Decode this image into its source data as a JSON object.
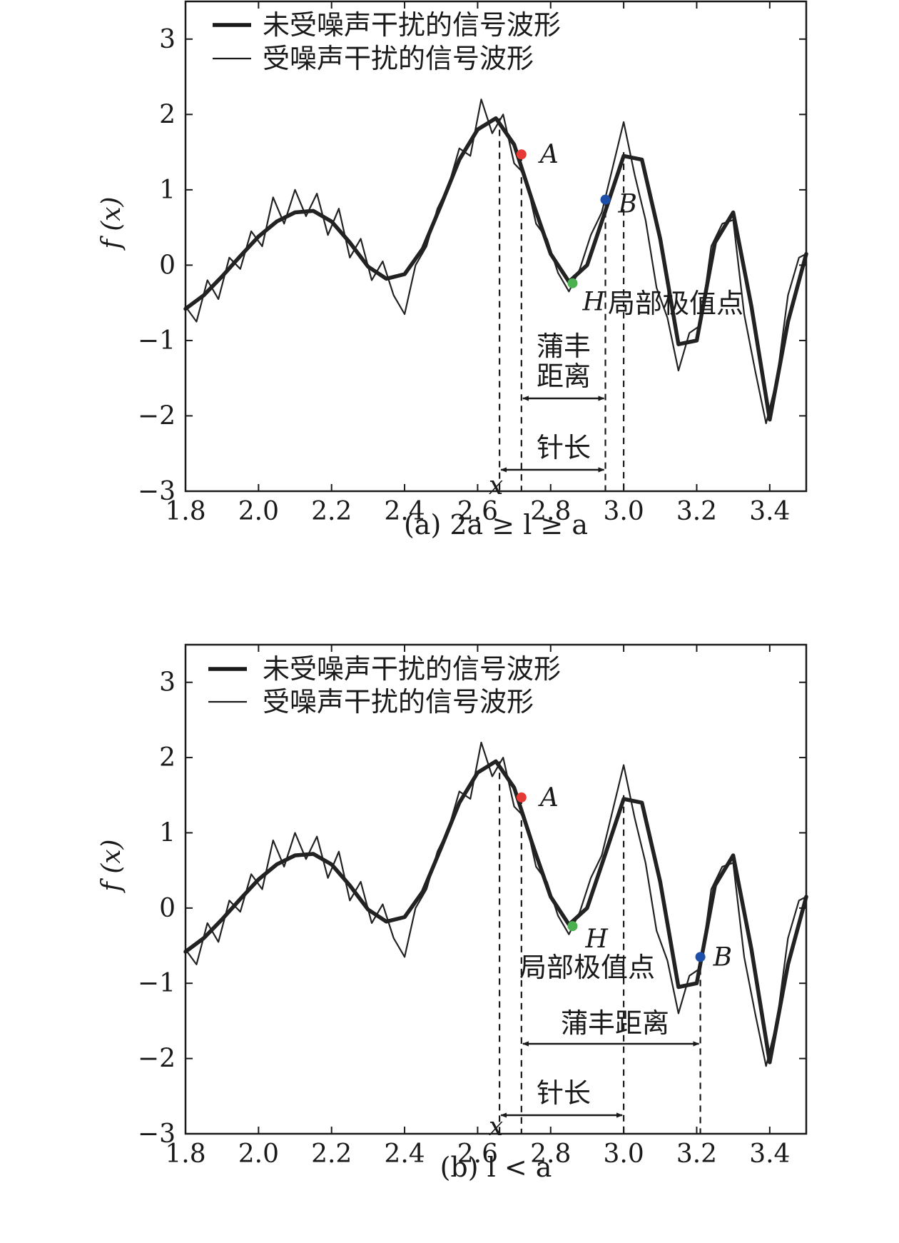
{
  "chart_data": [
    {
      "type": "line",
      "caption": "(a) 2a ≥ l ≥ a",
      "xlabel": "x",
      "ylabel": "f (x)",
      "xlim": [
        1.8,
        3.5
      ],
      "ylim": [
        -3,
        3.5
      ],
      "xticks": [
        "1.8",
        "2.0",
        "2.2",
        "2.4",
        "2.6",
        "2.8",
        "3.0",
        "3.2",
        "3.4"
      ],
      "xtick_values": [
        1.8,
        2.0,
        2.2,
        2.4,
        2.6,
        2.8,
        3.0,
        3.2,
        3.4
      ],
      "yticks": [
        "−3",
        "−2",
        "−1",
        "0",
        "1",
        "2",
        "3"
      ],
      "ytick_values": [
        -3,
        -2,
        -1,
        0,
        1,
        2,
        3
      ],
      "legend": {
        "position": "top-left",
        "entries": [
          "未受噪声干扰的信号波形",
          "受噪声干扰的信号波形"
        ]
      },
      "series": [
        {
          "name": "未受噪声干扰的信号波形",
          "style": "thick",
          "color": "#222222",
          "x": [
            1.8,
            1.85,
            1.9,
            1.95,
            2.0,
            2.05,
            2.1,
            2.15,
            2.2,
            2.25,
            2.3,
            2.35,
            2.4,
            2.45,
            2.5,
            2.55,
            2.6,
            2.65,
            2.7,
            2.75,
            2.8,
            2.85,
            2.9,
            2.95,
            3.0,
            3.05,
            3.1,
            3.15,
            3.2,
            3.25,
            3.3,
            3.35,
            3.4,
            3.45,
            3.5
          ],
          "y": [
            -0.58,
            -0.4,
            -0.15,
            0.12,
            0.38,
            0.58,
            0.7,
            0.72,
            0.58,
            0.3,
            -0.02,
            -0.18,
            -0.12,
            0.22,
            0.8,
            1.4,
            1.8,
            1.95,
            1.6,
            0.85,
            0.15,
            -0.22,
            0.0,
            0.72,
            1.45,
            1.4,
            0.35,
            -1.05,
            -1.0,
            0.3,
            0.7,
            -0.55,
            -2.05,
            -0.75,
            0.15
          ]
        },
        {
          "name": "受噪声干扰的信号波形",
          "style": "thin",
          "color": "#222222",
          "x": [
            1.8,
            1.83,
            1.86,
            1.89,
            1.92,
            1.95,
            1.98,
            2.01,
            2.04,
            2.07,
            2.1,
            2.13,
            2.16,
            2.19,
            2.22,
            2.25,
            2.28,
            2.31,
            2.34,
            2.37,
            2.4,
            2.43,
            2.46,
            2.49,
            2.52,
            2.55,
            2.58,
            2.61,
            2.64,
            2.67,
            2.7,
            2.73,
            2.76,
            2.79,
            2.82,
            2.85,
            2.88,
            2.91,
            2.94,
            2.97,
            3.0,
            3.03,
            3.06,
            3.09,
            3.12,
            3.15,
            3.18,
            3.21,
            3.24,
            3.27,
            3.3,
            3.33,
            3.36,
            3.39,
            3.42,
            3.45,
            3.48,
            3.5
          ],
          "y": [
            -0.55,
            -0.75,
            -0.2,
            -0.45,
            0.1,
            -0.05,
            0.45,
            0.25,
            0.9,
            0.55,
            1.0,
            0.65,
            0.95,
            0.4,
            0.75,
            0.1,
            0.35,
            -0.2,
            0.05,
            -0.4,
            -0.65,
            0.0,
            0.25,
            0.75,
            1.05,
            1.55,
            1.45,
            2.2,
            1.75,
            2.0,
            1.35,
            1.2,
            0.55,
            0.35,
            -0.1,
            -0.35,
            -0.05,
            0.4,
            0.7,
            1.3,
            1.9,
            1.2,
            0.6,
            -0.3,
            -0.7,
            -1.4,
            -0.9,
            -0.8,
            0.25,
            0.55,
            0.6,
            -0.65,
            -1.4,
            -2.1,
            -1.5,
            -0.4,
            0.1,
            0.15
          ]
        }
      ],
      "points": [
        {
          "label": "A",
          "x": 2.72,
          "y": 1.47,
          "color": "#e53935"
        },
        {
          "label": "B",
          "x": 2.95,
          "y": 0.87,
          "color": "#1e4fa8"
        },
        {
          "label": "H",
          "x": 2.86,
          "y": -0.24,
          "color": "#4caf50"
        }
      ],
      "annotations": {
        "local_extreme": "局部极值点",
        "buffon_distance": [
          "蒲丰",
          "距离"
        ],
        "needle_length": "针长"
      },
      "vlines": [
        2.66,
        2.72,
        2.95,
        3.0
      ]
    },
    {
      "type": "line",
      "caption": "(b) l < a",
      "xlabel": "x",
      "ylabel": "f (x)",
      "xlim": [
        1.8,
        3.5
      ],
      "ylim": [
        -3,
        3.5
      ],
      "xticks": [
        "1.8",
        "2.0",
        "2.2",
        "2.4",
        "2.6",
        "2.8",
        "3.0",
        "3.2",
        "3.4"
      ],
      "xtick_values": [
        1.8,
        2.0,
        2.2,
        2.4,
        2.6,
        2.8,
        3.0,
        3.2,
        3.4
      ],
      "yticks": [
        "−3",
        "−2",
        "−1",
        "0",
        "1",
        "2",
        "3"
      ],
      "ytick_values": [
        -3,
        -2,
        -1,
        0,
        1,
        2,
        3
      ],
      "legend": {
        "position": "top-left",
        "entries": [
          "未受噪声干扰的信号波形",
          "受噪声干扰的信号波形"
        ]
      },
      "series": [
        {
          "name": "未受噪声干扰的信号波形",
          "style": "thick",
          "color": "#222222",
          "x": [
            1.8,
            1.85,
            1.9,
            1.95,
            2.0,
            2.05,
            2.1,
            2.15,
            2.2,
            2.25,
            2.3,
            2.35,
            2.4,
            2.45,
            2.5,
            2.55,
            2.6,
            2.65,
            2.7,
            2.75,
            2.8,
            2.85,
            2.9,
            2.95,
            3.0,
            3.05,
            3.1,
            3.15,
            3.2,
            3.25,
            3.3,
            3.35,
            3.4,
            3.45,
            3.5
          ],
          "y": [
            -0.58,
            -0.4,
            -0.15,
            0.12,
            0.38,
            0.58,
            0.7,
            0.72,
            0.58,
            0.3,
            -0.02,
            -0.18,
            -0.12,
            0.22,
            0.8,
            1.4,
            1.8,
            1.95,
            1.6,
            0.85,
            0.15,
            -0.22,
            0.0,
            0.72,
            1.45,
            1.4,
            0.35,
            -1.05,
            -1.0,
            0.3,
            0.7,
            -0.55,
            -2.05,
            -0.75,
            0.15
          ]
        },
        {
          "name": "受噪声干扰的信号波形",
          "style": "thin",
          "color": "#222222",
          "x": [
            1.8,
            1.83,
            1.86,
            1.89,
            1.92,
            1.95,
            1.98,
            2.01,
            2.04,
            2.07,
            2.1,
            2.13,
            2.16,
            2.19,
            2.22,
            2.25,
            2.28,
            2.31,
            2.34,
            2.37,
            2.4,
            2.43,
            2.46,
            2.49,
            2.52,
            2.55,
            2.58,
            2.61,
            2.64,
            2.67,
            2.7,
            2.73,
            2.76,
            2.79,
            2.82,
            2.85,
            2.88,
            2.91,
            2.94,
            2.97,
            3.0,
            3.03,
            3.06,
            3.09,
            3.12,
            3.15,
            3.18,
            3.21,
            3.24,
            3.27,
            3.3,
            3.33,
            3.36,
            3.39,
            3.42,
            3.45,
            3.48,
            3.5
          ],
          "y": [
            -0.55,
            -0.75,
            -0.2,
            -0.45,
            0.1,
            -0.05,
            0.45,
            0.25,
            0.9,
            0.55,
            1.0,
            0.65,
            0.95,
            0.4,
            0.75,
            0.1,
            0.35,
            -0.2,
            0.05,
            -0.4,
            -0.65,
            0.0,
            0.25,
            0.75,
            1.05,
            1.55,
            1.45,
            2.2,
            1.75,
            2.0,
            1.35,
            1.2,
            0.55,
            0.35,
            -0.1,
            -0.35,
            -0.05,
            0.4,
            0.7,
            1.3,
            1.9,
            1.2,
            0.6,
            -0.3,
            -0.7,
            -1.4,
            -0.9,
            -0.8,
            0.25,
            0.55,
            0.6,
            -0.65,
            -1.4,
            -2.1,
            -1.5,
            -0.4,
            0.1,
            0.15
          ]
        }
      ],
      "points": [
        {
          "label": "A",
          "x": 2.72,
          "y": 1.47,
          "color": "#e53935"
        },
        {
          "label": "B",
          "x": 3.21,
          "y": -0.65,
          "color": "#1e4fa8"
        },
        {
          "label": "H",
          "x": 2.86,
          "y": -0.24,
          "color": "#4caf50"
        }
      ],
      "annotations": {
        "local_extreme": "局部极值点",
        "buffon_distance": "蒲丰距离",
        "needle_length": "针长"
      },
      "vlines": [
        2.66,
        2.72,
        3.0,
        3.21
      ]
    }
  ]
}
